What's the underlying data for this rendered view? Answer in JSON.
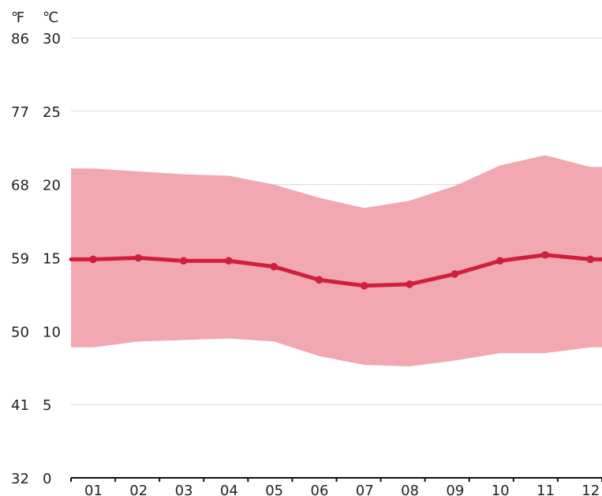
{
  "chart_data": {
    "type": "area",
    "units": {
      "fahrenheit": "℉",
      "celsius": "℃"
    },
    "x": [
      "01",
      "02",
      "03",
      "04",
      "05",
      "06",
      "07",
      "08",
      "09",
      "10",
      "11",
      "12"
    ],
    "ylim": [
      0,
      30
    ],
    "y_ticks_c": [
      "30",
      "25",
      "20",
      "15",
      "10",
      "5",
      "0"
    ],
    "y_ticks_f": [
      "86",
      "77",
      "68",
      "59",
      "50",
      "41",
      "32"
    ],
    "grid": true,
    "series": [
      {
        "values": [
          14.9,
          15.0,
          14.8,
          14.8,
          14.4,
          13.5,
          13.1,
          13.2,
          13.9,
          14.8,
          15.2,
          14.9
        ],
        "color": "#d01f3c"
      },
      {
        "values_low": [
          8.9,
          9.3,
          9.4,
          9.5,
          9.3,
          8.3,
          7.7,
          7.6,
          8.0,
          8.5,
          8.5,
          8.9
        ],
        "values_high": [
          21.1,
          20.9,
          20.7,
          20.6,
          20.0,
          19.1,
          18.4,
          18.9,
          19.9,
          21.3,
          22.0,
          21.2
        ],
        "color": "#f1a8b0"
      }
    ]
  }
}
